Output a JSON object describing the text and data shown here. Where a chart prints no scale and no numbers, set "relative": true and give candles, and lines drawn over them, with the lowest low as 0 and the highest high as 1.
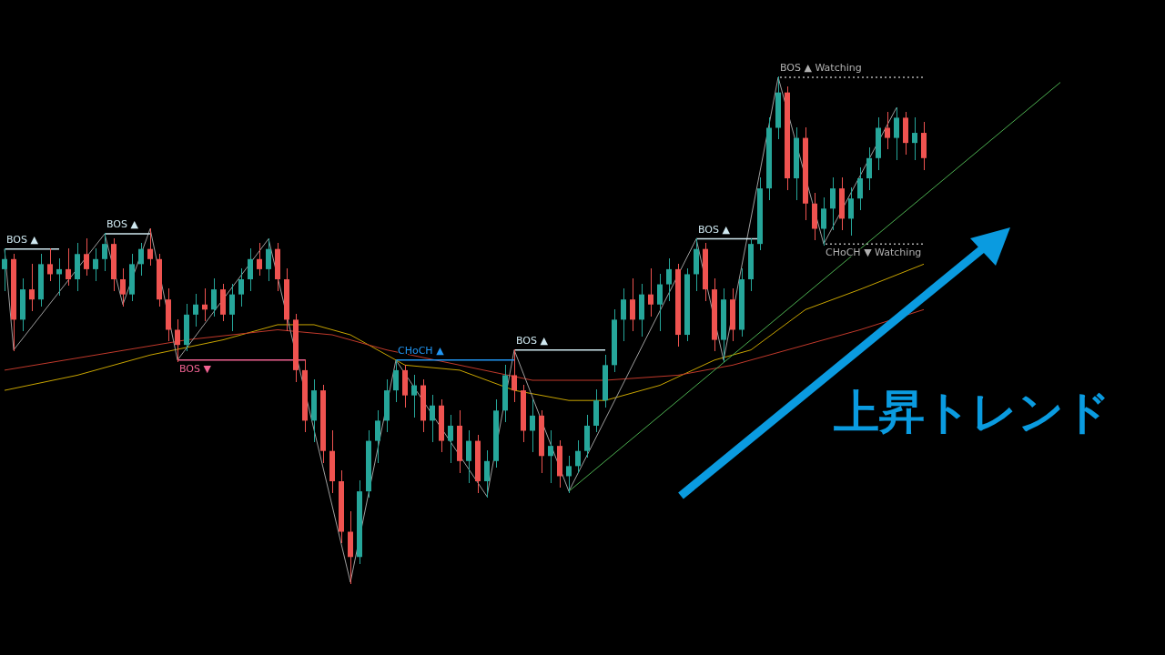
{
  "chart_data": {
    "type": "candlestick",
    "relative": true,
    "categories": [
      null,
      null,
      null,
      null,
      null,
      null,
      null,
      null,
      null,
      null,
      null,
      null,
      null,
      null,
      null,
      null,
      null,
      null,
      null,
      null,
      null,
      null,
      null,
      null,
      null,
      null,
      null,
      null,
      null,
      null,
      null,
      null,
      null,
      null,
      null,
      null,
      null,
      null,
      null,
      null,
      null,
      null,
      null,
      null,
      null,
      null,
      null,
      null,
      null,
      null,
      null,
      null,
      null,
      null,
      null,
      null,
      null,
      null,
      null,
      null,
      null,
      null,
      null,
      null,
      null,
      null,
      null,
      null,
      null,
      null,
      null,
      null,
      null,
      null,
      null,
      null,
      null,
      null,
      null,
      null,
      null,
      null,
      null,
      null,
      null,
      null,
      null,
      null,
      null,
      null,
      null,
      null,
      null,
      null,
      null,
      null,
      null,
      null,
      null,
      null,
      null,
      null,
      null,
      null,
      null,
      null,
      null,
      null,
      null,
      null,
      null,
      null,
      null,
      null,
      null,
      null,
      null
    ],
    "ohlc": [
      [
        0.62,
        0.66,
        0.58,
        0.64
      ],
      [
        0.64,
        0.65,
        0.46,
        0.52
      ],
      [
        0.52,
        0.6,
        0.5,
        0.58
      ],
      [
        0.58,
        0.63,
        0.54,
        0.56
      ],
      [
        0.56,
        0.65,
        0.55,
        0.63
      ],
      [
        0.63,
        0.66,
        0.6,
        0.61
      ],
      [
        0.61,
        0.64,
        0.57,
        0.62
      ],
      [
        0.62,
        0.66,
        0.59,
        0.6
      ],
      [
        0.6,
        0.67,
        0.58,
        0.65
      ],
      [
        0.65,
        0.68,
        0.61,
        0.62
      ],
      [
        0.62,
        0.66,
        0.6,
        0.64
      ],
      [
        0.64,
        0.69,
        0.62,
        0.67
      ],
      [
        0.67,
        0.68,
        0.58,
        0.6
      ],
      [
        0.6,
        0.62,
        0.55,
        0.57
      ],
      [
        0.57,
        0.65,
        0.56,
        0.63
      ],
      [
        0.63,
        0.67,
        0.61,
        0.66
      ],
      [
        0.66,
        0.7,
        0.63,
        0.64
      ],
      [
        0.64,
        0.65,
        0.55,
        0.56
      ],
      [
        0.56,
        0.58,
        0.48,
        0.5
      ],
      [
        0.5,
        0.52,
        0.44,
        0.47
      ],
      [
        0.47,
        0.55,
        0.46,
        0.53
      ],
      [
        0.53,
        0.57,
        0.51,
        0.55
      ],
      [
        0.55,
        0.58,
        0.52,
        0.54
      ],
      [
        0.54,
        0.6,
        0.53,
        0.58
      ],
      [
        0.58,
        0.59,
        0.52,
        0.53
      ],
      [
        0.53,
        0.59,
        0.5,
        0.57
      ],
      [
        0.57,
        0.62,
        0.55,
        0.6
      ],
      [
        0.6,
        0.66,
        0.58,
        0.64
      ],
      [
        0.64,
        0.67,
        0.61,
        0.62
      ],
      [
        0.62,
        0.68,
        0.6,
        0.66
      ],
      [
        0.66,
        0.67,
        0.58,
        0.6
      ],
      [
        0.6,
        0.62,
        0.5,
        0.52
      ],
      [
        0.52,
        0.53,
        0.4,
        0.42
      ],
      [
        0.42,
        0.44,
        0.3,
        0.32
      ],
      [
        0.32,
        0.4,
        0.28,
        0.38
      ],
      [
        0.38,
        0.39,
        0.24,
        0.26
      ],
      [
        0.26,
        0.3,
        0.18,
        0.2
      ],
      [
        0.2,
        0.22,
        0.08,
        0.1
      ],
      [
        0.1,
        0.14,
        0,
        0.05
      ],
      [
        0.05,
        0.2,
        0.04,
        0.18
      ],
      [
        0.18,
        0.3,
        0.17,
        0.28
      ],
      [
        0.28,
        0.34,
        0.24,
        0.32
      ],
      [
        0.32,
        0.4,
        0.3,
        0.38
      ],
      [
        0.38,
        0.44,
        0.36,
        0.42
      ],
      [
        0.42,
        0.43,
        0.35,
        0.37
      ],
      [
        0.37,
        0.41,
        0.33,
        0.39
      ],
      [
        0.39,
        0.4,
        0.3,
        0.32
      ],
      [
        0.32,
        0.37,
        0.28,
        0.35
      ],
      [
        0.35,
        0.36,
        0.26,
        0.28
      ],
      [
        0.28,
        0.33,
        0.24,
        0.31
      ],
      [
        0.31,
        0.34,
        0.22,
        0.24
      ],
      [
        0.24,
        0.3,
        0.2,
        0.28
      ],
      [
        0.28,
        0.29,
        0.18,
        0.2
      ],
      [
        0.2,
        0.26,
        0.17,
        0.24
      ],
      [
        0.24,
        0.36,
        0.23,
        0.34
      ],
      [
        0.34,
        0.43,
        0.32,
        0.41
      ],
      [
        0.41,
        0.46,
        0.36,
        0.38
      ],
      [
        0.38,
        0.39,
        0.28,
        0.3
      ],
      [
        0.3,
        0.36,
        0.26,
        0.33
      ],
      [
        0.33,
        0.34,
        0.22,
        0.25
      ],
      [
        0.25,
        0.3,
        0.2,
        0.27
      ],
      [
        0.27,
        0.28,
        0.19,
        0.21
      ],
      [
        0.21,
        0.25,
        0.18,
        0.23
      ],
      [
        0.23,
        0.28,
        0.22,
        0.26
      ],
      [
        0.26,
        0.33,
        0.25,
        0.31
      ],
      [
        0.31,
        0.38,
        0.3,
        0.36
      ],
      [
        0.36,
        0.45,
        0.35,
        0.43
      ],
      [
        0.43,
        0.54,
        0.42,
        0.52
      ],
      [
        0.52,
        0.58,
        0.48,
        0.56
      ],
      [
        0.56,
        0.6,
        0.5,
        0.52
      ],
      [
        0.52,
        0.59,
        0.49,
        0.57
      ],
      [
        0.57,
        0.62,
        0.53,
        0.55
      ],
      [
        0.55,
        0.61,
        0.5,
        0.59
      ],
      [
        0.59,
        0.64,
        0.56,
        0.62
      ],
      [
        0.62,
        0.63,
        0.47,
        0.49
      ],
      [
        0.49,
        0.62,
        0.48,
        0.61
      ],
      [
        0.61,
        0.68,
        0.58,
        0.66
      ],
      [
        0.66,
        0.67,
        0.56,
        0.58
      ],
      [
        0.58,
        0.6,
        0.46,
        0.48
      ],
      [
        0.48,
        0.58,
        0.44,
        0.56
      ],
      [
        0.56,
        0.58,
        0.48,
        0.5
      ],
      [
        0.5,
        0.62,
        0.49,
        0.6
      ],
      [
        0.6,
        0.68,
        0.58,
        0.67
      ],
      [
        0.67,
        0.8,
        0.66,
        0.78
      ],
      [
        0.78,
        0.92,
        0.76,
        0.9
      ],
      [
        0.9,
        1,
        0.88,
        0.97
      ],
      [
        0.97,
        0.98,
        0.78,
        0.8
      ],
      [
        0.8,
        0.9,
        0.76,
        0.88
      ],
      [
        0.88,
        0.9,
        0.72,
        0.75
      ],
      [
        0.75,
        0.77,
        0.68,
        0.7
      ],
      [
        0.7,
        0.76,
        0.67,
        0.74
      ],
      [
        0.74,
        0.8,
        0.7,
        0.78
      ],
      [
        0.78,
        0.8,
        0.7,
        0.72
      ],
      [
        0.72,
        0.78,
        0.69,
        0.76
      ],
      [
        0.76,
        0.82,
        0.74,
        0.8
      ],
      [
        0.8,
        0.86,
        0.78,
        0.84
      ],
      [
        0.84,
        0.92,
        0.82,
        0.9
      ],
      [
        0.9,
        0.93,
        0.86,
        0.88
      ],
      [
        0.88,
        0.94,
        0.84,
        0.92
      ],
      [
        0.92,
        0.93,
        0.85,
        0.87
      ],
      [
        0.87,
        0.92,
        0.84,
        0.89
      ],
      [
        0.89,
        0.91,
        0.82,
        0.84
      ],
      null,
      null,
      null,
      null,
      null,
      null,
      null,
      null,
      null,
      null,
      null,
      null,
      null,
      null,
      null
    ],
    "series": [
      {
        "type": "line",
        "color": "#c8a400",
        "values": [
          0.38,
          null,
          null,
          null,
          null,
          null,
          null,
          null,
          0.41,
          null,
          null,
          null,
          null,
          null,
          null,
          null,
          0.45,
          null,
          null,
          null,
          null,
          null,
          null,
          null,
          0.48,
          null,
          null,
          null,
          null,
          null,
          0.51,
          null,
          null,
          null,
          0.51,
          null,
          null,
          null,
          0.49,
          null,
          null,
          null,
          null,
          null,
          0.43,
          null,
          null,
          null,
          null,
          null,
          0.42,
          null,
          null,
          null,
          null,
          null,
          0.38,
          null,
          null,
          null,
          null,
          null,
          0.36,
          null,
          null,
          null,
          0.36,
          null,
          null,
          null,
          null,
          null,
          0.39,
          null,
          null,
          null,
          null,
          null,
          0.44,
          null,
          null,
          null,
          0.46,
          null,
          null,
          null,
          null,
          null,
          0.54,
          null,
          null,
          null,
          null,
          null,
          0.58,
          null,
          null,
          null,
          null,
          null,
          null,
          0.63,
          null,
          null,
          null,
          null,
          null,
          null,
          null,
          null,
          null,
          null,
          null,
          null,
          null,
          null,
          null
        ]
      },
      {
        "type": "line",
        "color": "#c0392b",
        "values": [
          0.42,
          null,
          null,
          null,
          null,
          null,
          null,
          null,
          null,
          null,
          0.45,
          null,
          null,
          null,
          null,
          null,
          null,
          null,
          null,
          null,
          0.48,
          null,
          null,
          null,
          null,
          null,
          null,
          null,
          null,
          null,
          0.5,
          null,
          null,
          null,
          null,
          null,
          0.49,
          null,
          null,
          null,
          null,
          null,
          0.46,
          null,
          null,
          null,
          null,
          null,
          null,
          null,
          0.43,
          null,
          null,
          null,
          null,
          null,
          null,
          null,
          0.4,
          null,
          null,
          null,
          null,
          null,
          null,
          null,
          0.4,
          null,
          null,
          null,
          null,
          null,
          null,
          null,
          0.41,
          null,
          null,
          null,
          null,
          null,
          0.43,
          null,
          null,
          null,
          null,
          null,
          null,
          null,
          0.47,
          null,
          null,
          null,
          null,
          null,
          0.5,
          null,
          null,
          null,
          null,
          null,
          null,
          0.54,
          null,
          null,
          null,
          null,
          null,
          null,
          null,
          null,
          null,
          null,
          null,
          null,
          null,
          null,
          null
        ]
      },
      {
        "type": "line",
        "color": "#9e9e9e",
        "values": [
          0.66,
          0.46,
          null,
          null,
          null,
          null,
          null,
          null,
          null,
          null,
          null,
          0.69,
          null,
          0.55,
          null,
          null,
          0.7,
          null,
          null,
          0.44,
          null,
          null,
          null,
          null,
          null,
          null,
          null,
          null,
          null,
          0.68,
          null,
          null,
          null,
          null,
          null,
          null,
          null,
          null,
          0,
          null,
          null,
          null,
          null,
          0.44,
          null,
          null,
          null,
          null,
          null,
          null,
          null,
          null,
          null,
          0.17,
          null,
          null,
          0.46,
          null,
          null,
          null,
          null,
          null,
          0.18,
          null,
          null,
          null,
          null,
          null,
          null,
          null,
          null,
          null,
          null,
          null,
          null,
          null,
          0.68,
          null,
          null,
          0.44,
          null,
          null,
          null,
          null,
          null,
          1,
          null,
          null,
          null,
          null,
          0.67,
          null,
          null,
          null,
          null,
          null,
          null,
          null,
          0.94,
          null,
          null,
          null,
          null,
          null,
          null,
          null,
          null,
          null,
          null,
          null,
          null,
          null,
          null,
          null,
          null,
          null,
          null
        ]
      },
      {
        "type": "line",
        "color": "#4caf50",
        "values": [
          null,
          null,
          null,
          null,
          null,
          null,
          null,
          null,
          null,
          null,
          null,
          null,
          null,
          null,
          null,
          null,
          null,
          null,
          null,
          null,
          null,
          null,
          null,
          null,
          null,
          null,
          null,
          null,
          null,
          null,
          null,
          null,
          null,
          null,
          null,
          null,
          null,
          null,
          null,
          null,
          null,
          null,
          null,
          null,
          null,
          null,
          null,
          null,
          null,
          null,
          null,
          null,
          null,
          null,
          null,
          null,
          null,
          null,
          null,
          null,
          null,
          null,
          0.18,
          null,
          null,
          null,
          null,
          null,
          null,
          null,
          null,
          null,
          null,
          null,
          null,
          null,
          null,
          null,
          null,
          null,
          null,
          null,
          null,
          null,
          null,
          null,
          null,
          null,
          null,
          null,
          null,
          null,
          null,
          null,
          null,
          null,
          null,
          null,
          null,
          null,
          null,
          null,
          null,
          null,
          null,
          null,
          null,
          null,
          null,
          null,
          null,
          null,
          null,
          null,
          null,
          null,
          0.99
        ]
      },
      {
        "type": "line",
        "name": "BOS ▲",
        "color": "#cfe8f0",
        "values": [
          0.66,
          null,
          null,
          null,
          null,
          null,
          0.66,
          null,
          null,
          null,
          null,
          null,
          null,
          null,
          null,
          null,
          null,
          null,
          null,
          null,
          null,
          null,
          null,
          null,
          null,
          null,
          null,
          null,
          null,
          null,
          null,
          null,
          null,
          null,
          null,
          null,
          null,
          null,
          null,
          null,
          null,
          null,
          null,
          null,
          null,
          null,
          null,
          null,
          null,
          null,
          null,
          null,
          null,
          null,
          null,
          null,
          null,
          null,
          null,
          null,
          null,
          null,
          null,
          null,
          null,
          null,
          null,
          null,
          null,
          null,
          null,
          null,
          null,
          null,
          null,
          null,
          null,
          null,
          null,
          null,
          null,
          null,
          null,
          null,
          null,
          null,
          null,
          null,
          null,
          null,
          null,
          null,
          null,
          null,
          null,
          null,
          null,
          null,
          null,
          null,
          null,
          null,
          null,
          null,
          null,
          null,
          null,
          null,
          null,
          null,
          null,
          null,
          null,
          null,
          null,
          null,
          null
        ]
      },
      {
        "type": "line",
        "name": "BOS ▲",
        "color": "#cfe8f0",
        "values": [
          null,
          null,
          null,
          null,
          null,
          null,
          null,
          null,
          null,
          null,
          null,
          0.69,
          null,
          null,
          null,
          null,
          0.69,
          null,
          null,
          null,
          null,
          null,
          null,
          null,
          null,
          null,
          null,
          null,
          null,
          null,
          null,
          null,
          null,
          null,
          null,
          null,
          null,
          null,
          null,
          null,
          null,
          null,
          null,
          null,
          null,
          null,
          null,
          null,
          null,
          null,
          null,
          null,
          null,
          null,
          null,
          null,
          null,
          null,
          null,
          null,
          null,
          null,
          null,
          null,
          null,
          null,
          null,
          null,
          null,
          null,
          null,
          null,
          null,
          null,
          null,
          null,
          null,
          null,
          null,
          null,
          null,
          null,
          null,
          null,
          null,
          null,
          null,
          null,
          null,
          null,
          null,
          null,
          null,
          null,
          null,
          null,
          null,
          null,
          null,
          null,
          null,
          null,
          null,
          null,
          null,
          null,
          null,
          null,
          null,
          null,
          null,
          null,
          null,
          null,
          null,
          null,
          null
        ]
      },
      {
        "type": "line",
        "name": "BOS ▼",
        "color": "#f06292",
        "values": [
          null,
          null,
          null,
          null,
          null,
          null,
          null,
          null,
          null,
          null,
          null,
          null,
          null,
          null,
          null,
          null,
          null,
          null,
          null,
          0.44,
          null,
          null,
          null,
          null,
          null,
          null,
          null,
          null,
          null,
          null,
          null,
          null,
          null,
          0.44,
          null,
          null,
          null,
          null,
          null,
          null,
          null,
          null,
          null,
          null,
          null,
          null,
          null,
          null,
          null,
          null,
          null,
          null,
          null,
          null,
          null,
          null,
          null,
          null,
          null,
          null,
          null,
          null,
          null,
          null,
          null,
          null,
          null,
          null,
          null,
          null,
          null,
          null,
          null,
          null,
          null,
          null,
          null,
          null,
          null,
          null,
          null,
          null,
          null,
          null,
          null,
          null,
          null,
          null,
          null,
          null,
          null,
          null,
          null,
          null,
          null,
          null,
          null,
          null,
          null,
          null,
          null,
          null,
          null,
          null,
          null,
          null,
          null,
          null,
          null,
          null,
          null,
          null,
          null,
          null,
          null,
          null,
          null
        ]
      },
      {
        "type": "line",
        "name": "CHoCH ▲",
        "color": "#2196f3",
        "values": [
          null,
          null,
          null,
          null,
          null,
          null,
          null,
          null,
          null,
          null,
          null,
          null,
          null,
          null,
          null,
          null,
          null,
          null,
          null,
          null,
          null,
          null,
          null,
          null,
          null,
          null,
          null,
          null,
          null,
          null,
          null,
          null,
          null,
          null,
          null,
          null,
          null,
          null,
          null,
          null,
          null,
          null,
          null,
          0.44,
          null,
          null,
          null,
          null,
          null,
          null,
          null,
          null,
          null,
          null,
          null,
          null,
          0.44,
          null,
          null,
          null,
          null,
          null,
          null,
          null,
          null,
          null,
          null,
          null,
          null,
          null,
          null,
          null,
          null,
          null,
          null,
          null,
          null,
          null,
          null,
          null,
          null,
          null,
          null,
          null,
          null,
          null,
          null,
          null,
          null,
          null,
          null,
          null,
          null,
          null,
          null,
          null,
          null,
          null,
          null,
          null,
          null,
          null,
          null,
          null,
          null,
          null,
          null,
          null,
          null,
          null,
          null,
          null,
          null,
          null,
          null,
          null,
          null
        ]
      },
      {
        "type": "line",
        "name": "BOS ▲",
        "color": "#cfe8f0",
        "values": [
          null,
          null,
          null,
          null,
          null,
          null,
          null,
          null,
          null,
          null,
          null,
          null,
          null,
          null,
          null,
          null,
          null,
          null,
          null,
          null,
          null,
          null,
          null,
          null,
          null,
          null,
          null,
          null,
          null,
          null,
          null,
          null,
          null,
          null,
          null,
          null,
          null,
          null,
          null,
          null,
          null,
          null,
          null,
          null,
          null,
          null,
          null,
          null,
          null,
          null,
          null,
          null,
          null,
          null,
          null,
          null,
          0.46,
          null,
          null,
          null,
          null,
          null,
          null,
          null,
          null,
          null,
          0.46,
          null,
          null,
          null,
          null,
          null,
          null,
          null,
          null,
          null,
          null,
          null,
          null,
          null,
          null,
          null,
          null,
          null,
          null,
          null,
          null,
          null,
          null,
          null,
          null,
          null,
          null,
          null,
          null,
          null,
          null,
          null,
          null,
          null,
          null,
          null,
          null,
          null,
          null,
          null,
          null,
          null,
          null,
          null,
          null,
          null,
          null,
          null,
          null,
          null,
          null
        ]
      },
      {
        "type": "line",
        "name": "BOS ▲",
        "color": "#cfe8f0",
        "values": [
          null,
          null,
          null,
          null,
          null,
          null,
          null,
          null,
          null,
          null,
          null,
          null,
          null,
          null,
          null,
          null,
          null,
          null,
          null,
          null,
          null,
          null,
          null,
          null,
          null,
          null,
          null,
          null,
          null,
          null,
          null,
          null,
          null,
          null,
          null,
          null,
          null,
          null,
          null,
          null,
          null,
          null,
          null,
          null,
          null,
          null,
          null,
          null,
          null,
          null,
          null,
          null,
          null,
          null,
          null,
          null,
          null,
          null,
          null,
          null,
          null,
          null,
          null,
          null,
          null,
          null,
          null,
          null,
          null,
          null,
          null,
          null,
          null,
          null,
          null,
          null,
          0.68,
          null,
          null,
          null,
          null,
          null,
          null,
          0.68,
          null,
          null,
          null,
          null,
          null,
          null,
          null,
          null,
          null,
          null,
          null,
          null,
          null,
          null,
          null,
          null,
          null,
          null,
          null,
          null,
          null,
          null,
          null,
          null,
          null,
          null,
          null,
          null,
          null,
          null,
          null,
          null,
          null
        ]
      },
      {
        "type": "line",
        "name": "BOS ▲ Watching",
        "color": "#b0b0b0",
        "line_style": "dotted",
        "values": [
          null,
          null,
          null,
          null,
          null,
          null,
          null,
          null,
          null,
          null,
          null,
          null,
          null,
          null,
          null,
          null,
          null,
          null,
          null,
          null,
          null,
          null,
          null,
          null,
          null,
          null,
          null,
          null,
          null,
          null,
          null,
          null,
          null,
          null,
          null,
          null,
          null,
          null,
          null,
          null,
          null,
          null,
          null,
          null,
          null,
          null,
          null,
          null,
          null,
          null,
          null,
          null,
          null,
          null,
          null,
          null,
          null,
          null,
          null,
          null,
          null,
          null,
          null,
          null,
          null,
          null,
          null,
          null,
          null,
          null,
          null,
          null,
          null,
          null,
          null,
          null,
          null,
          null,
          null,
          null,
          null,
          null,
          null,
          null,
          null,
          1,
          null,
          null,
          null,
          null,
          null,
          null,
          null,
          null,
          null,
          null,
          null,
          null,
          null,
          null,
          null,
          1,
          null,
          null,
          null,
          null,
          null,
          null,
          null,
          null,
          null,
          null,
          null,
          null,
          null,
          null,
          null
        ]
      },
      {
        "type": "line",
        "name": "CHoCH ▼ Watching",
        "color": "#b0b0b0",
        "line_style": "dotted",
        "values": [
          null,
          null,
          null,
          null,
          null,
          null,
          null,
          null,
          null,
          null,
          null,
          null,
          null,
          null,
          null,
          null,
          null,
          null,
          null,
          null,
          null,
          null,
          null,
          null,
          null,
          null,
          null,
          null,
          null,
          null,
          null,
          null,
          null,
          null,
          null,
          null,
          null,
          null,
          null,
          null,
          null,
          null,
          null,
          null,
          null,
          null,
          null,
          null,
          null,
          null,
          null,
          null,
          null,
          null,
          null,
          null,
          null,
          null,
          null,
          null,
          null,
          null,
          null,
          null,
          null,
          null,
          null,
          null,
          null,
          null,
          null,
          null,
          null,
          null,
          null,
          null,
          null,
          null,
          null,
          null,
          null,
          null,
          null,
          null,
          null,
          null,
          null,
          null,
          null,
          null,
          0.67,
          null,
          null,
          null,
          null,
          null,
          null,
          null,
          null,
          null,
          null,
          0.67,
          null,
          null,
          null,
          null,
          null,
          null,
          null,
          null,
          null,
          null,
          null,
          null,
          null,
          null,
          null
        ]
      }
    ],
    "annotations": [
      "上昇トレンド"
    ]
  }
}
